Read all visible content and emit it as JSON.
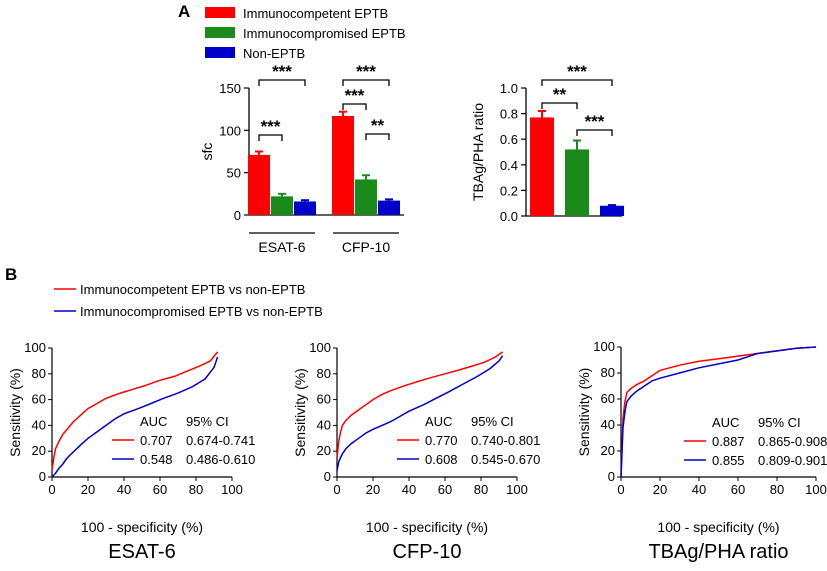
{
  "panel_a": {
    "label": "A",
    "legend": [
      {
        "name": "Immunocompetent EPTB",
        "color": "#ff0000"
      },
      {
        "name": "Immunocompromised EPTB",
        "color": "#1a8a1a"
      },
      {
        "name": "Non-EPTB",
        "color": "#0000cc"
      }
    ]
  },
  "panel_b": {
    "label": "B",
    "legend": [
      {
        "name": "Immunocompetent EPTB vs non-EPTB",
        "color": "#ff0000"
      },
      {
        "name": "Immunocompromised EPTB vs non-EPTB",
        "color": "#0000cc"
      }
    ]
  },
  "chart_data": [
    {
      "type": "bar",
      "title": "",
      "ylabel": "sfc",
      "ylim": [
        0,
        150
      ],
      "yticks": [
        0,
        50,
        100,
        150
      ],
      "categories": [
        "ESAT-6",
        "CFP-10"
      ],
      "series": [
        {
          "name": "Immunocompetent EPTB",
          "color": "#ff0000",
          "values": [
            71,
            117
          ],
          "errors": [
            4,
            5
          ]
        },
        {
          "name": "Immunocompromised EPTB",
          "color": "#1a8a1a",
          "values": [
            22,
            42
          ],
          "errors": [
            3,
            5
          ]
        },
        {
          "name": "Non-EPTB",
          "color": "#0000cc",
          "values": [
            16,
            17
          ],
          "errors": [
            1.5,
            1.5
          ]
        }
      ],
      "significance": [
        {
          "group": 0,
          "from": 0,
          "to": 1,
          "label": "***"
        },
        {
          "group": 0,
          "from": 0,
          "to": 2,
          "label": "***"
        },
        {
          "group": 1,
          "from": 0,
          "to": 1,
          "label": "***"
        },
        {
          "group": 1,
          "from": 1,
          "to": 2,
          "label": "**"
        },
        {
          "group": 1,
          "from": 0,
          "to": 2,
          "label": "***"
        }
      ]
    },
    {
      "type": "bar",
      "title": "",
      "ylabel": "TBAg/PHA ratio",
      "ylim": [
        0,
        1.0
      ],
      "yticks": [
        "0.0",
        "0.2",
        "0.4",
        "0.6",
        "0.8",
        "1.0"
      ],
      "categories": [
        ""
      ],
      "series": [
        {
          "name": "Immunocompetent EPTB",
          "color": "#ff0000",
          "values": [
            0.77
          ],
          "errors": [
            0.05
          ]
        },
        {
          "name": "Immunocompromised EPTB",
          "color": "#1a8a1a",
          "values": [
            0.52
          ],
          "errors": [
            0.07
          ]
        },
        {
          "name": "Non-EPTB",
          "color": "#0000cc",
          "values": [
            0.08
          ],
          "errors": [
            0.005
          ]
        }
      ],
      "significance": [
        {
          "group": 0,
          "from": 0,
          "to": 1,
          "label": "**"
        },
        {
          "group": 0,
          "from": 1,
          "to": 2,
          "label": "***"
        },
        {
          "group": 0,
          "from": 0,
          "to": 2,
          "label": "***"
        }
      ]
    },
    {
      "type": "line",
      "title": "ESAT-6",
      "xlabel": "100 - specificity (%)",
      "ylabel": "Sensitivity (%)",
      "xlim": [
        0,
        100
      ],
      "ylim": [
        0,
        100
      ],
      "xticks": [
        0,
        20,
        40,
        60,
        80,
        100
      ],
      "yticks": [
        0,
        20,
        40,
        60,
        80,
        100
      ],
      "auc_header": [
        "AUC",
        "95% CI"
      ],
      "series": [
        {
          "name": "Immunocompetent EPTB vs non-EPTB",
          "color": "#ff0000",
          "auc": "0.707",
          "ci": "0.674-0.741",
          "x": [
            0,
            1,
            2,
            4,
            6,
            9,
            12,
            16,
            20,
            25,
            30,
            38,
            45,
            52,
            60,
            68,
            75,
            82,
            88,
            92
          ],
          "y": [
            5,
            15,
            22,
            28,
            33,
            38,
            43,
            48,
            53,
            57,
            61,
            65,
            68,
            71,
            75,
            78,
            82,
            86,
            90,
            97
          ]
        },
        {
          "name": "Immunocompromised EPTB vs non-EPTB",
          "color": "#0000cc",
          "auc": "0.548",
          "ci": "0.486-0.610",
          "x": [
            0,
            2,
            4,
            6,
            8,
            10,
            13,
            16,
            20,
            25,
            30,
            35,
            40,
            48,
            55,
            62,
            70,
            78,
            85,
            90,
            92
          ],
          "y": [
            0,
            3,
            7,
            10,
            14,
            17,
            21,
            25,
            30,
            35,
            40,
            45,
            49,
            53,
            57,
            61,
            65,
            70,
            76,
            85,
            93
          ]
        }
      ]
    },
    {
      "type": "line",
      "title": "CFP-10",
      "xlabel": "100 - specificity (%)",
      "ylabel": "Sensitivity (%)",
      "xlim": [
        0,
        100
      ],
      "ylim": [
        0,
        100
      ],
      "xticks": [
        0,
        20,
        40,
        60,
        80,
        100
      ],
      "yticks": [
        0,
        20,
        40,
        60,
        80,
        100
      ],
      "auc_header": [
        "AUC",
        "95% CI"
      ],
      "series": [
        {
          "name": "Immunocompetent EPTB vs non-EPTB",
          "color": "#ff0000",
          "auc": "0.770",
          "ci": "0.740-0.801",
          "x": [
            0,
            1,
            2,
            3,
            5,
            8,
            12,
            16,
            20,
            25,
            30,
            38,
            45,
            52,
            60,
            68,
            75,
            82,
            88,
            92
          ],
          "y": [
            15,
            28,
            35,
            40,
            44,
            48,
            52,
            56,
            60,
            64,
            67,
            71,
            74,
            77,
            80,
            83,
            86,
            89,
            93,
            97
          ]
        },
        {
          "name": "Immunocompromised EPTB vs non-EPTB",
          "color": "#0000cc",
          "auc": "0.608",
          "ci": "0.545-0.670",
          "x": [
            0,
            1,
            3,
            5,
            8,
            12,
            16,
            20,
            25,
            30,
            35,
            40,
            48,
            55,
            62,
            70,
            78,
            85,
            90,
            92
          ],
          "y": [
            5,
            12,
            18,
            22,
            26,
            30,
            34,
            37,
            40,
            43,
            47,
            51,
            56,
            61,
            66,
            72,
            78,
            84,
            90,
            94
          ]
        }
      ]
    },
    {
      "type": "line",
      "title": "TBAg/PHA ratio",
      "xlabel": "100 - specificity (%)",
      "ylabel": "Sensitivity (%)",
      "xlim": [
        0,
        100
      ],
      "ylim": [
        0,
        100
      ],
      "xticks": [
        0,
        20,
        40,
        60,
        80,
        100
      ],
      "yticks": [
        0,
        20,
        40,
        60,
        80,
        100
      ],
      "auc_header": [
        "AUC",
        "95% CI"
      ],
      "series": [
        {
          "name": "Immunocompetent EPTB vs non-EPTB",
          "color": "#ff0000",
          "auc": "0.887",
          "ci": "0.865-0.908",
          "x": [
            0,
            1,
            2,
            3,
            5,
            8,
            12,
            16,
            20,
            30,
            40,
            50,
            60,
            70,
            80,
            90,
            100
          ],
          "y": [
            0,
            45,
            58,
            65,
            68,
            71,
            74,
            78,
            82,
            86,
            89,
            91,
            93,
            95,
            97,
            99,
            100
          ]
        },
        {
          "name": "Immunocompromised EPTB vs non-EPTB",
          "color": "#0000cc",
          "auc": "0.855",
          "ci": "0.809-0.901",
          "x": [
            0,
            1,
            2,
            3,
            5,
            8,
            12,
            16,
            20,
            30,
            40,
            50,
            60,
            70,
            80,
            90,
            100
          ],
          "y": [
            0,
            38,
            50,
            58,
            62,
            66,
            70,
            74,
            76,
            80,
            84,
            87,
            90,
            95,
            97,
            99,
            100
          ]
        }
      ]
    }
  ]
}
